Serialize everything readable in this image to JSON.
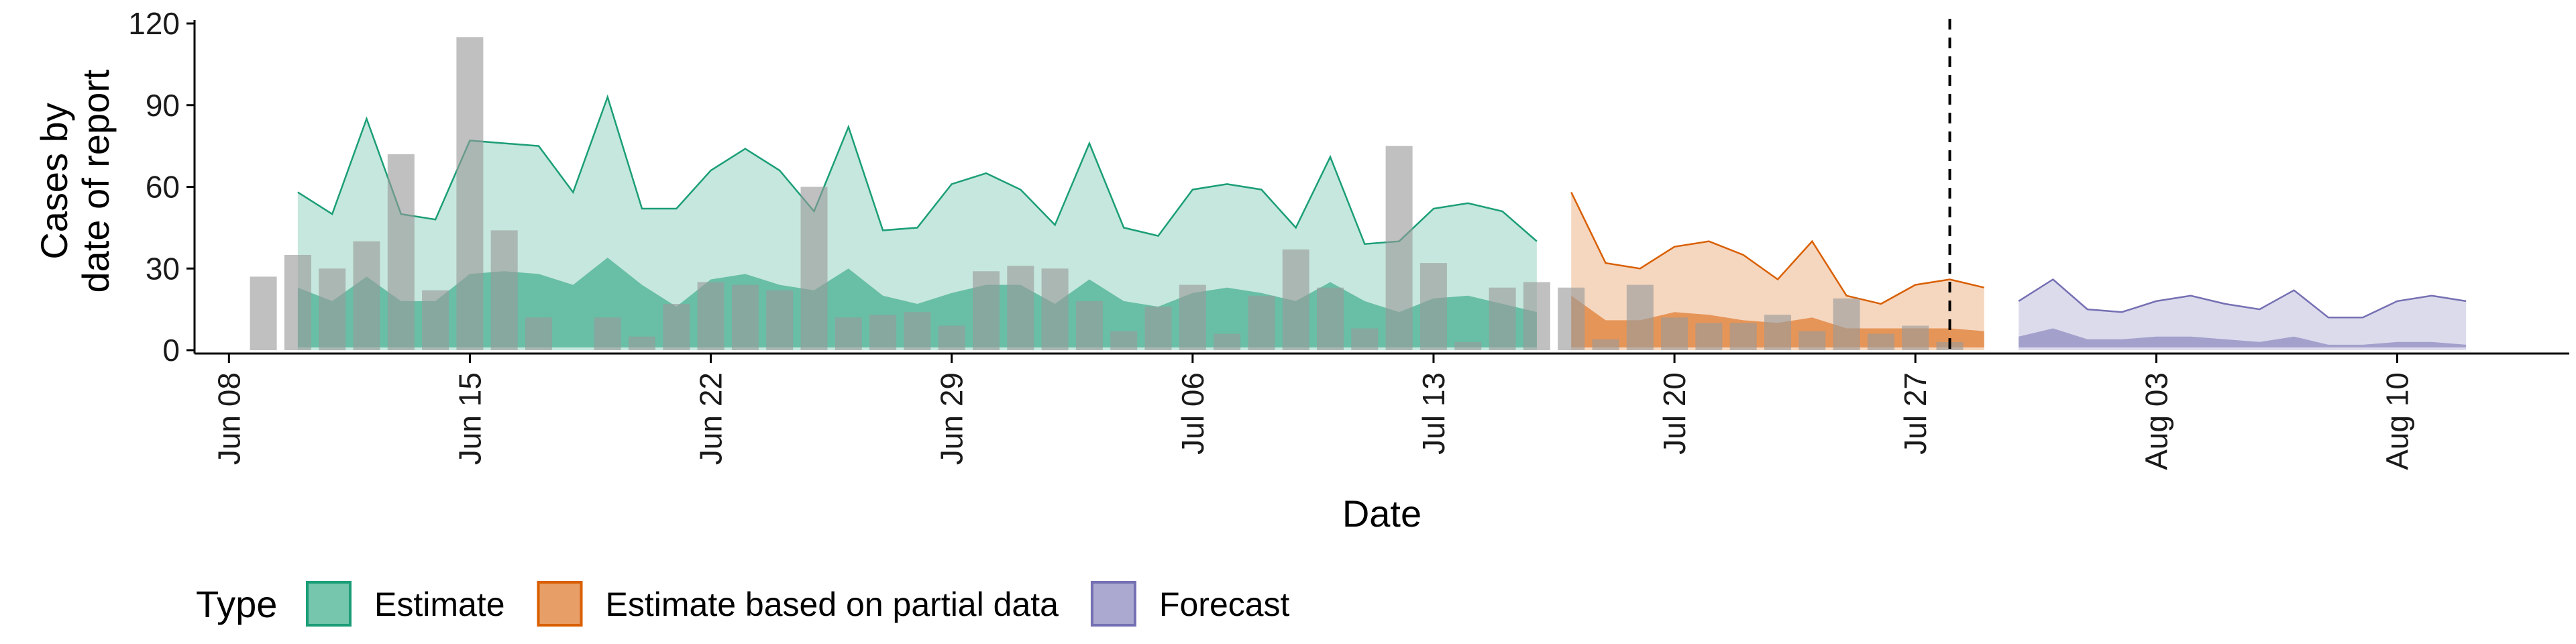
{
  "chart_data": {
    "type": "area",
    "xlabel": "Date",
    "ylabel_lines": [
      "Cases by",
      "date of report"
    ],
    "ylim": [
      0,
      120
    ],
    "yticks": [
      0,
      30,
      60,
      90,
      120
    ],
    "xlim_days": [
      "2020-06-07",
      "2020-08-15"
    ],
    "xticks": [
      {
        "date": "2020-06-08",
        "label": "Jun 08"
      },
      {
        "date": "2020-06-15",
        "label": "Jun 15"
      },
      {
        "date": "2020-06-22",
        "label": "Jun 22"
      },
      {
        "date": "2020-06-29",
        "label": "Jun 29"
      },
      {
        "date": "2020-07-06",
        "label": "Jul 06"
      },
      {
        "date": "2020-07-13",
        "label": "Jul 13"
      },
      {
        "date": "2020-07-20",
        "label": "Jul 20"
      },
      {
        "date": "2020-07-27",
        "label": "Jul 27"
      },
      {
        "date": "2020-08-03",
        "label": "Aug 03"
      },
      {
        "date": "2020-08-10",
        "label": "Aug 10"
      }
    ],
    "forecast_cutoff": "2020-07-28",
    "legend_title": "Type",
    "legend_position": "bottom",
    "series": [
      {
        "name": "Estimate",
        "color": "#1b9e77",
        "start_date": "2020-06-10",
        "upper90": [
          58,
          50,
          85,
          50,
          48,
          77,
          76,
          75,
          58,
          93,
          52,
          52,
          66,
          74,
          66,
          51,
          82,
          44,
          45,
          61,
          65,
          59,
          46,
          76,
          45,
          42,
          59,
          61,
          59,
          45,
          71,
          39,
          40,
          52,
          54,
          51,
          40
        ],
        "upper50": [
          23,
          18,
          27,
          18,
          18,
          28,
          29,
          28,
          24,
          34,
          24,
          16,
          26,
          28,
          24,
          22,
          30,
          20,
          17,
          21,
          24,
          24,
          17,
          26,
          18,
          16,
          21,
          23,
          21,
          18,
          25,
          18,
          14,
          19,
          20,
          17,
          14
        ],
        "lower50": [
          1,
          1,
          1,
          1,
          1,
          1,
          1,
          1,
          1,
          1,
          1,
          1,
          1,
          1,
          1,
          1,
          1,
          1,
          1,
          1,
          1,
          1,
          1,
          1,
          1,
          1,
          1,
          1,
          1,
          1,
          1,
          1,
          1,
          1,
          1,
          1,
          1
        ],
        "lower90": [
          0,
          0,
          0,
          0,
          0,
          0,
          0,
          0,
          0,
          0,
          0,
          0,
          0,
          0,
          0,
          0,
          0,
          0,
          0,
          0,
          0,
          0,
          0,
          0,
          0,
          0,
          0,
          0,
          0,
          0,
          0,
          0,
          0,
          0,
          0,
          0,
          0
        ]
      },
      {
        "name": "Estimate based on partial data",
        "color": "#d95f02",
        "start_date": "2020-07-17",
        "upper90": [
          58,
          32,
          30,
          38,
          40,
          35,
          26,
          40,
          20,
          17,
          24,
          26,
          23
        ],
        "upper50": [
          20,
          11,
          11,
          14,
          13,
          11,
          10,
          12,
          8,
          8,
          8,
          8,
          7
        ],
        "lower50": [
          1,
          1,
          1,
          1,
          1,
          1,
          1,
          1,
          1,
          1,
          1,
          1,
          1
        ],
        "lower90": [
          0,
          0,
          0,
          0,
          0,
          0,
          0,
          0,
          0,
          0,
          0,
          0,
          0
        ]
      },
      {
        "name": "Forecast",
        "color": "#7570b3",
        "start_date": "2020-07-30",
        "upper90": [
          18,
          26,
          15,
          14,
          18,
          20,
          17,
          15,
          22,
          12,
          12,
          18,
          20,
          18
        ],
        "upper50": [
          5,
          8,
          4,
          4,
          5,
          5,
          4,
          3,
          5,
          2,
          2,
          3,
          3,
          2
        ],
        "lower50": [
          1,
          1,
          1,
          1,
          1,
          1,
          1,
          1,
          1,
          1,
          1,
          1,
          1,
          1
        ],
        "lower90": [
          0,
          0,
          0,
          0,
          0,
          0,
          0,
          0,
          0,
          0,
          0,
          0,
          0,
          0
        ]
      }
    ],
    "observed_cases": {
      "color": "#999999",
      "start_date": "2020-06-09",
      "values": [
        27,
        35,
        30,
        40,
        72,
        22,
        115,
        44,
        12,
        0,
        12,
        5,
        17,
        25,
        24,
        22,
        60,
        12,
        13,
        14,
        9,
        29,
        31,
        30,
        18,
        7,
        16,
        24,
        6,
        20,
        37,
        23,
        8,
        75,
        32,
        3,
        23,
        25,
        23,
        4,
        24,
        12,
        10,
        10,
        13,
        7,
        19,
        6,
        9,
        3
      ]
    }
  }
}
